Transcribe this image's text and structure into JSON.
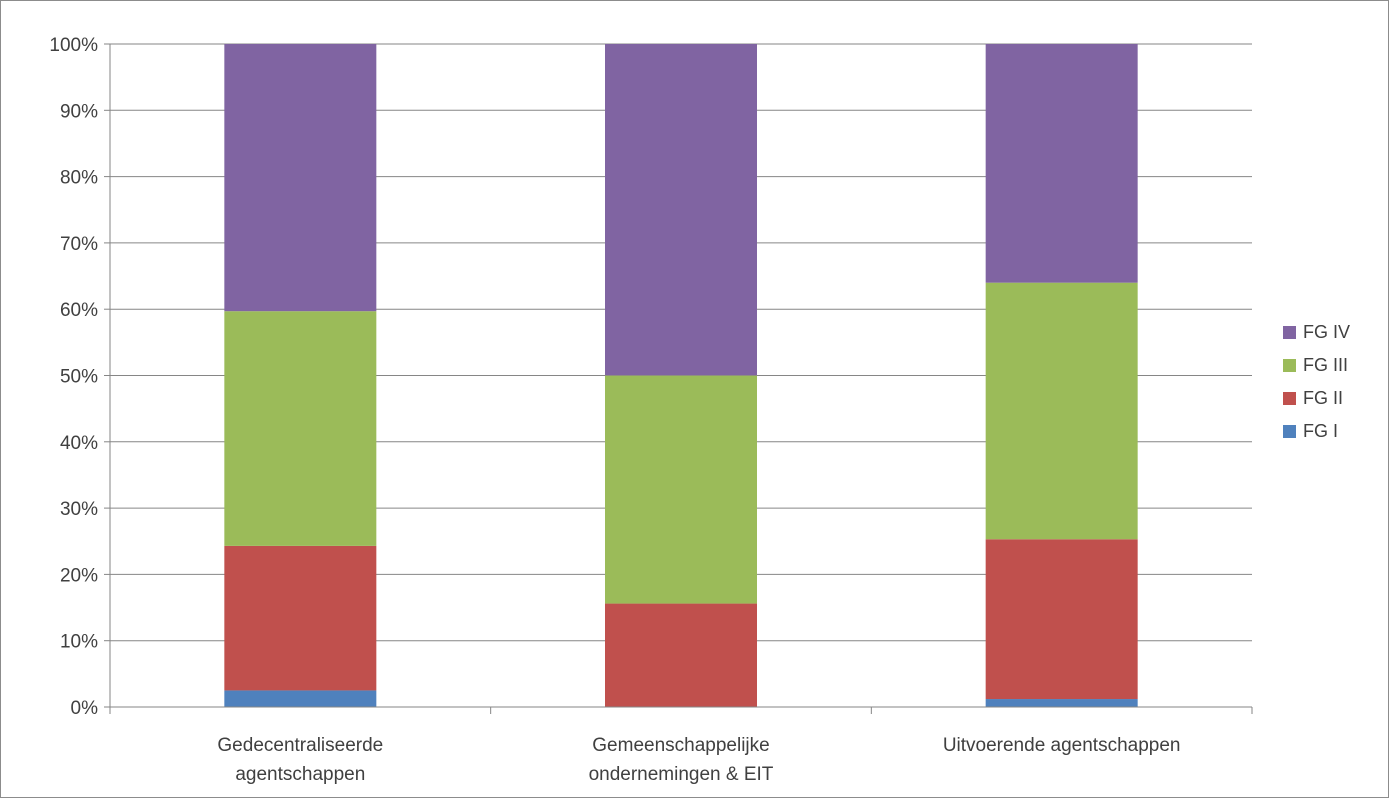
{
  "chart_data": {
    "type": "bar",
    "stacked": true,
    "percent": true,
    "categories": [
      [
        "Gedecentraliseerde",
        "agentschappen"
      ],
      [
        "Gemeenschappelijke",
        "ondernemingen & EIT"
      ],
      [
        "Uitvoerende agentschappen"
      ]
    ],
    "series": [
      {
        "name": "FG I",
        "color": "#4f81bd",
        "values": [
          2.5,
          0,
          1.2
        ]
      },
      {
        "name": "FG II",
        "color": "#c0504d",
        "values": [
          21.8,
          15.6,
          24.1
        ]
      },
      {
        "name": "FG III",
        "color": "#9bbb59",
        "values": [
          35.4,
          34.4,
          38.7
        ]
      },
      {
        "name": "FG IV",
        "color": "#8064a2",
        "values": [
          40.3,
          50.0,
          36.0
        ]
      }
    ],
    "ylim": [
      0,
      100
    ],
    "yticks": [
      "0%",
      "10%",
      "20%",
      "30%",
      "40%",
      "50%",
      "60%",
      "70%",
      "80%",
      "90%",
      "100%"
    ],
    "grid": true,
    "legend": "right"
  }
}
